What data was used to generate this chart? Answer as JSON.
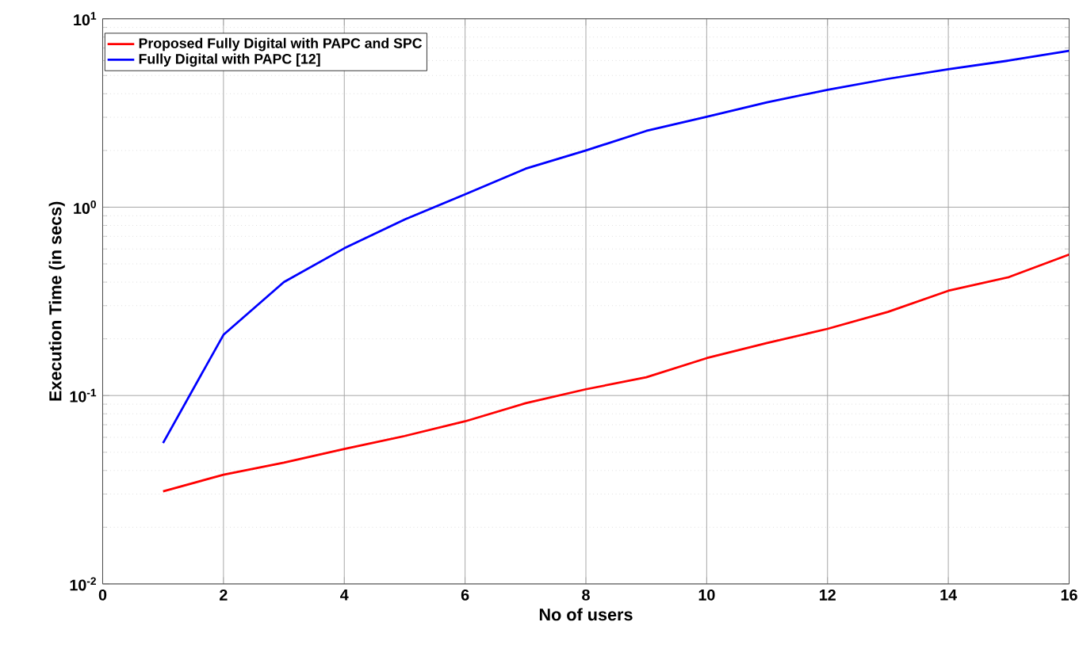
{
  "chart_data": {
    "type": "line",
    "xlabel": "No of users",
    "ylabel": "Execution Time (in secs)",
    "log": "y",
    "grid": true,
    "legend": "top left",
    "x": [
      1,
      2,
      3,
      4,
      5,
      6,
      7,
      8,
      9,
      10,
      11,
      12,
      13,
      14,
      15,
      16
    ],
    "xlim": [
      0,
      16
    ],
    "xticks": [
      0,
      2,
      4,
      6,
      8,
      10,
      12,
      14,
      16
    ],
    "ylim": [
      0.01,
      10
    ],
    "yticks": [
      {
        "value": 0.01,
        "label": "10$^{-2}$"
      },
      {
        "value": 0.1,
        "label": "10$^{-1}$"
      },
      {
        "value": 1,
        "label": "10$^{0}$"
      },
      {
        "value": 10,
        "label": "10$^{1}$"
      }
    ],
    "series": [
      {
        "name": "Proposed Fully Digital with PAPC and SPC",
        "color": "#ff0000",
        "values": [
          0.031,
          0.038,
          0.044,
          0.052,
          0.061,
          0.073,
          0.091,
          0.108,
          0.125,
          0.158,
          0.19,
          0.226,
          0.278,
          0.36,
          0.425,
          0.56
        ]
      },
      {
        "name": "Fully Digital with PAPC [12]",
        "color": "#0000ff",
        "values": [
          0.056,
          0.21,
          0.4,
          0.605,
          0.86,
          1.17,
          1.6,
          2.0,
          2.54,
          3.02,
          3.6,
          4.2,
          4.8,
          5.4,
          6.0,
          6.76
        ]
      }
    ]
  }
}
